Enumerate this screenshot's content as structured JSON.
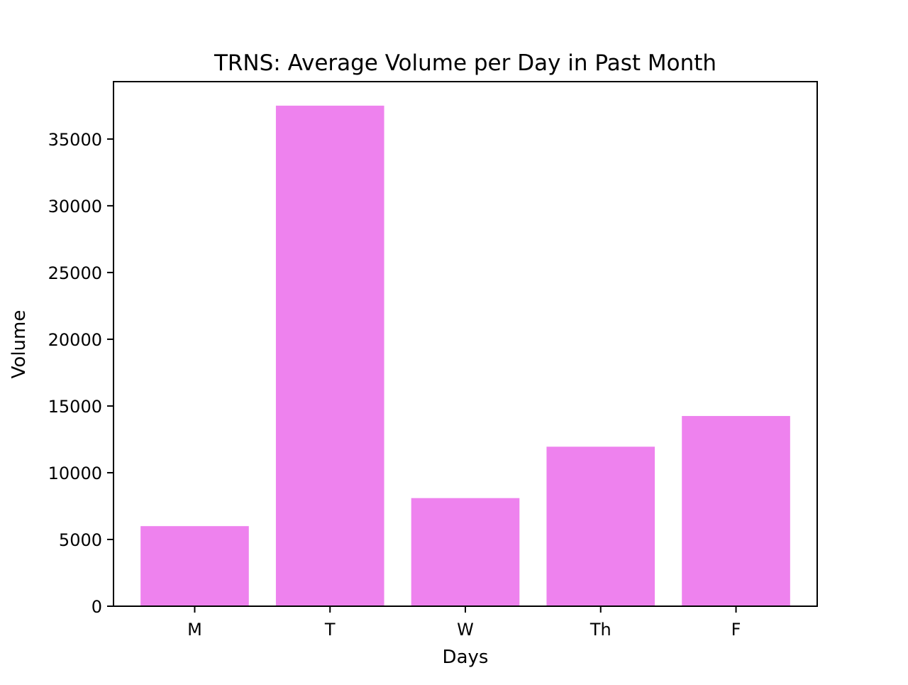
{
  "chart_data": {
    "type": "bar",
    "title": "TRNS: Average Volume per Day in Past Month",
    "xlabel": "Days",
    "ylabel": "Volume",
    "categories": [
      "M",
      "T",
      "W",
      "Th",
      "F"
    ],
    "values": [
      6000,
      37500,
      8100,
      11950,
      14250
    ],
    "ylim": [
      0,
      39300
    ],
    "yticks": [
      0,
      5000,
      10000,
      15000,
      20000,
      25000,
      30000,
      35000
    ],
    "grid": false,
    "legend": "none",
    "bar_color": "#ee82ee"
  }
}
